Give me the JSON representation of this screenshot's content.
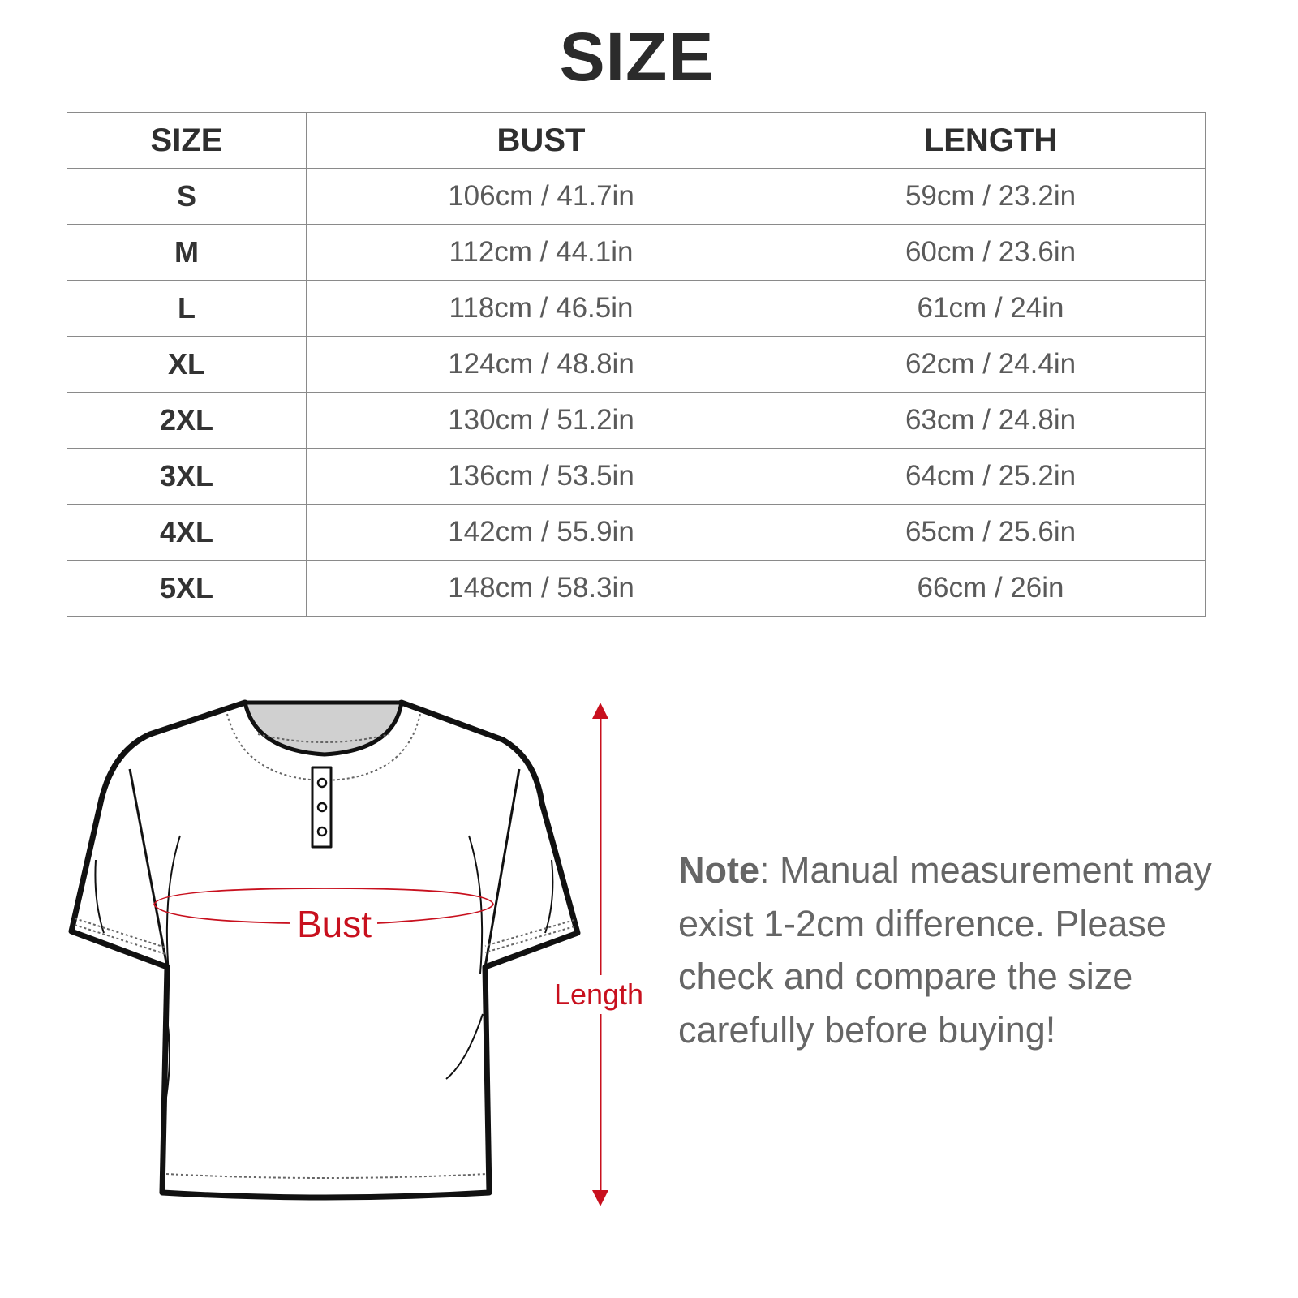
{
  "title": "SIZE",
  "table": {
    "headers": [
      "SIZE",
      "BUST",
      "LENGTH"
    ],
    "rows": [
      [
        "S",
        "106cm / 41.7in",
        "59cm / 23.2in"
      ],
      [
        "M",
        "112cm / 44.1in",
        "60cm / 23.6in"
      ],
      [
        "L",
        "118cm / 46.5in",
        "61cm / 24in"
      ],
      [
        "XL",
        "124cm / 48.8in",
        "62cm / 24.4in"
      ],
      [
        "2XL",
        "130cm / 51.2in",
        "63cm / 24.8in"
      ],
      [
        "3XL",
        "136cm / 53.5in",
        "64cm / 25.2in"
      ],
      [
        "4XL",
        "142cm / 55.9in",
        "65cm / 25.6in"
      ],
      [
        "5XL",
        "148cm / 58.3in",
        "66cm / 26in"
      ]
    ]
  },
  "diagram": {
    "bust_label": "Bust",
    "length_label": "Length",
    "accent_color": "#c8101e"
  },
  "note": {
    "label": "Note",
    "text": ": Manual measurement may exist 1-2cm difference. Please check and compare the size carefully before buying!"
  }
}
